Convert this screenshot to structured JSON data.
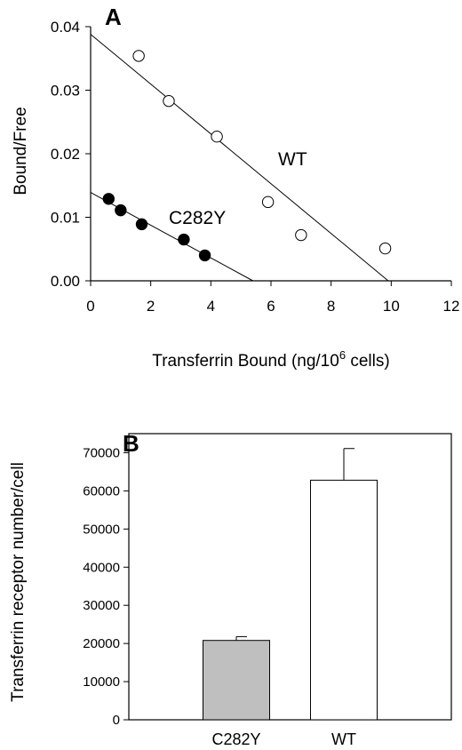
{
  "chart_data": [
    {
      "type": "scatter",
      "panel_label": "A",
      "xlabel": "Transferrin Bound (ng/10",
      "xlabel_sup": "6",
      "xlabel_tail": " cells)",
      "ylabel": "Bound/Free",
      "xlim": [
        0,
        12
      ],
      "ylim": [
        0,
        0.04
      ],
      "xticks": [
        "0",
        "2",
        "4",
        "6",
        "8",
        "10",
        "12"
      ],
      "yticks": [
        "0.00",
        "0.01",
        "0.02",
        "0.03",
        "0.04"
      ],
      "grid": false,
      "series": [
        {
          "name": "WT",
          "marker": "open-circle",
          "points": [
            [
              1.6,
              0.0354
            ],
            [
              2.6,
              0.0283
            ],
            [
              4.2,
              0.0227
            ],
            [
              5.9,
              0.0124
            ],
            [
              7.0,
              0.0072
            ],
            [
              9.8,
              0.0051
            ]
          ],
          "fit_line": [
            [
              0,
              0.0388
            ],
            [
              9.9,
              0
            ]
          ]
        },
        {
          "name": "C282Y",
          "marker": "filled-circle",
          "points": [
            [
              0.6,
              0.0129
            ],
            [
              1.0,
              0.0111
            ],
            [
              1.7,
              0.0089
            ],
            [
              3.1,
              0.0065
            ],
            [
              3.8,
              0.004
            ]
          ],
          "fit_line": [
            [
              0,
              0.0139
            ],
            [
              5.4,
              0
            ]
          ]
        }
      ]
    },
    {
      "type": "bar",
      "panel_label": "B",
      "ylabel": "Transferrin receptor number/cell",
      "categories": [
        "C282Y",
        "WT"
      ],
      "values": [
        20800,
        62800
      ],
      "errors": [
        1000,
        8300
      ],
      "colors": [
        "#bfbfbf",
        "#ffffff"
      ],
      "ylim": [
        0,
        75000
      ],
      "yticks": [
        "0",
        "10000",
        "20000",
        "30000",
        "40000",
        "50000",
        "60000",
        "70000"
      ],
      "grid": false
    }
  ]
}
